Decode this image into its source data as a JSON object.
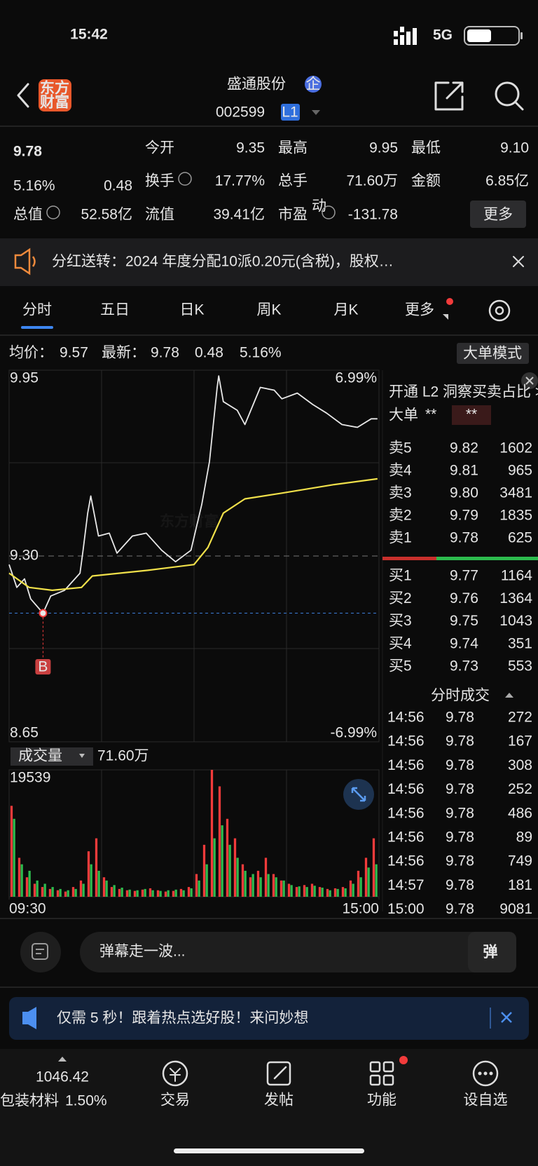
{
  "status": {
    "time": "15:42",
    "network": "5G"
  },
  "header": {
    "logo": [
      "东方",
      "财富"
    ],
    "title": "盛通股份",
    "badge": "企",
    "code": "002599",
    "level": "L1"
  },
  "quote": {
    "price": "9.78",
    "pct": "5.16%",
    "change": "0.48",
    "fields": [
      {
        "label": "今开",
        "value": "9.35",
        "color": "#f23b3b"
      },
      {
        "label": "最高",
        "value": "9.95",
        "color": "#f23b3b"
      },
      {
        "label": "最低",
        "value": "9.10",
        "color": "#2dbb4e"
      },
      {
        "label": "换手",
        "value": "17.77%"
      },
      {
        "label": "总手",
        "value": "71.60万"
      },
      {
        "label": "金额",
        "value": "6.85亿"
      },
      {
        "label": "总值",
        "value": "52.58亿"
      },
      {
        "label": "流值",
        "value": "39.41亿"
      },
      {
        "label": "市盈",
        "sup": "动",
        "value": "-131.78"
      }
    ],
    "more": "更多"
  },
  "notice": "分红送转：2024 年度分配10派0.20元(含税)，股权…",
  "tabs": [
    "分时",
    "五日",
    "日K",
    "周K",
    "月K",
    "更多"
  ],
  "info": {
    "avg_label": "均价：",
    "avg": "9.57",
    "latest_label": "最新：",
    "latest": "9.78",
    "change": "0.48",
    "pct": "5.16%",
    "mode": "大单模式"
  },
  "chart_data": [
    {
      "type": "line",
      "watermark": "东方财富",
      "xlim": [
        0,
        240
      ],
      "ylim": [
        8.65,
        9.95
      ],
      "yticks": [
        9.95,
        {
          "value": 9.3,
          "label": "9.30"
        },
        8.65
      ],
      "y2lim": [
        -6.99,
        6.99
      ],
      "y2ticks": [
        {
          "value": 6.99,
          "label": "6.99%"
        },
        {
          "value": -6.99,
          "label": "-6.99%"
        }
      ],
      "series": [
        {
          "color": "#e8e8e8",
          "x": [
            0,
            5,
            10,
            14,
            22,
            27,
            36,
            46,
            48,
            51,
            53,
            58,
            65,
            70,
            80,
            89,
            99,
            108,
            118,
            125,
            130,
            135,
            136,
            139,
            148,
            153,
            163,
            172,
            177,
            187,
            197,
            206,
            216,
            226,
            235,
            239
          ],
          "values": [
            9.27,
            9.19,
            9.22,
            9.15,
            9.1,
            9.16,
            9.18,
            9.24,
            9.32,
            9.45,
            9.51,
            9.37,
            9.38,
            9.31,
            9.37,
            9.38,
            9.32,
            9.28,
            9.32,
            9.48,
            9.63,
            9.89,
            9.93,
            9.84,
            9.81,
            9.76,
            9.89,
            9.88,
            9.85,
            9.87,
            9.83,
            9.8,
            9.76,
            9.75,
            9.78,
            9.78
          ]
        },
        {
          "color": "#f0e04a",
          "x": [
            0,
            13,
            28,
            47,
            54,
            90,
            120,
            129,
            139,
            153,
            177,
            211,
            239
          ],
          "values": [
            9.24,
            9.19,
            9.18,
            9.19,
            9.23,
            9.25,
            9.27,
            9.33,
            9.45,
            9.5,
            9.52,
            9.55,
            9.57
          ]
        }
      ],
      "marker": {
        "x": 22,
        "value": 9.1,
        "label": "B"
      }
    },
    {
      "type": "bar",
      "title": "成交量",
      "total": "71.60万",
      "xlim": [
        0,
        240
      ],
      "xticks": [
        {
          "value": 0,
          "label": "09:30"
        },
        {
          "value": 240,
          "label": "15:00"
        }
      ],
      "ylim": [
        0,
        19539
      ],
      "yticks": [
        19539
      ],
      "series": [
        {
          "color": "#f23b3b",
          "values": [
            14000,
            6000,
            3000,
            2000,
            1500,
            1200,
            1000,
            800,
            1500,
            2500,
            7000,
            9000,
            3000,
            1500,
            1200,
            1000,
            900,
            1100,
            1300,
            1000,
            800,
            900,
            1200,
            1500,
            3500,
            8000,
            19539,
            17000,
            12000,
            9000,
            5000,
            3000,
            4000,
            6000,
            3500,
            2500,
            2000,
            1500,
            1800,
            2000,
            1500,
            1200,
            1300,
            1500,
            2500,
            4000,
            6000,
            9000
          ]
        },
        {
          "color": "#2dbb4e",
          "values": [
            12000,
            5000,
            4000,
            2500,
            2000,
            1500,
            1200,
            1000,
            1200,
            2000,
            5000,
            4000,
            2500,
            1800,
            1400,
            1100,
            1000,
            1200,
            1000,
            900,
            1000,
            1100,
            1000,
            1300,
            2500,
            5000,
            9000,
            11000,
            8000,
            6000,
            4000,
            3500,
            3000,
            3500,
            3000,
            2500,
            1800,
            1600,
            1500,
            1700,
            1400,
            1000,
            1200,
            1300,
            2000,
            3000,
            4500,
            5000
          ]
        }
      ]
    }
  ],
  "orderbook": {
    "link": "开通 L2 洞察买卖占比 >",
    "big": "大单",
    "stars": [
      "**",
      "**"
    ],
    "asks": [
      {
        "label": "卖5",
        "price": "9.82",
        "vol": "1602"
      },
      {
        "label": "卖4",
        "price": "9.81",
        "vol": "965"
      },
      {
        "label": "卖3",
        "price": "9.80",
        "vol": "3481"
      },
      {
        "label": "卖2",
        "price": "9.79",
        "vol": "1835"
      },
      {
        "label": "卖1",
        "price": "9.78",
        "vol": "625"
      }
    ],
    "bids": [
      {
        "label": "买1",
        "price": "9.77",
        "vol": "1164"
      },
      {
        "label": "买2",
        "price": "9.76",
        "vol": "1364"
      },
      {
        "label": "买3",
        "price": "9.75",
        "vol": "1043"
      },
      {
        "label": "买4",
        "price": "9.74",
        "vol": "351"
      },
      {
        "label": "买5",
        "price": "9.73",
        "vol": "553"
      }
    ]
  },
  "trades": {
    "title": "分时成交",
    "rows": [
      {
        "time": "14:56",
        "price": "9.78",
        "vol": "272",
        "color": "#2dbb4e"
      },
      {
        "time": "14:56",
        "price": "9.78",
        "vol": "167",
        "color": "#2dbb4e"
      },
      {
        "time": "14:56",
        "price": "9.78",
        "vol": "308",
        "color": "#2dbb4e"
      },
      {
        "time": "14:56",
        "price": "9.78",
        "vol": "252",
        "color": "#2dbb4e"
      },
      {
        "time": "14:56",
        "price": "9.78",
        "vol": "486",
        "color": "#2dbb4e"
      },
      {
        "time": "14:56",
        "price": "9.78",
        "vol": "89",
        "color": "#f23b3b"
      },
      {
        "time": "14:56",
        "price": "9.78",
        "vol": "749",
        "color": "#f23b3b"
      },
      {
        "time": "14:57",
        "price": "9.78",
        "vol": "181",
        "color": "#f23b3b"
      },
      {
        "time": "15:00",
        "price": "9.78",
        "vol": "9081",
        "color": "#f23b3b"
      }
    ]
  },
  "comment": {
    "placeholder": "弹幕走一波...",
    "button": "弹"
  },
  "ad": "仅需 5 秒！跟着热点选好股！来问妙想",
  "nav": {
    "index": "1046.42",
    "sector": "包装材料",
    "sector_pct": "1.50%",
    "items": [
      "交易",
      "发帖",
      "功能",
      "设自选"
    ]
  }
}
